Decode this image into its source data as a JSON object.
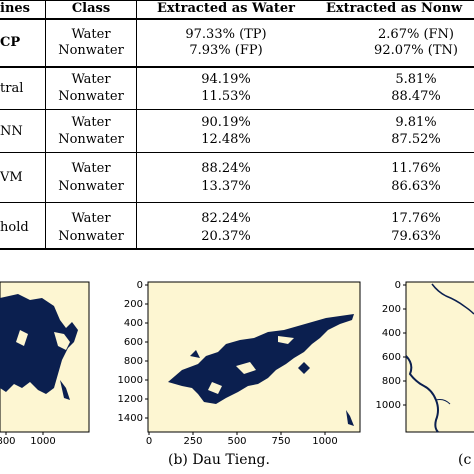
{
  "table": {
    "headers": [
      "ines",
      "Class",
      "Extracted as Water",
      "Extracted as Nonw"
    ],
    "rows": [
      {
        "method": "CP",
        "water_class": "Water",
        "nonwater_class": "Nonwater",
        "water_ew": "97.33% (TP)",
        "water_en": "2.67% (FN)",
        "nonwater_ew": "7.93% (FP)",
        "nonwater_en": "92.07% (TN)"
      },
      {
        "method": "tral",
        "water_class": "Water",
        "nonwater_class": "Nonwater",
        "water_ew": "94.19%",
        "water_en": "5.81%",
        "nonwater_ew": "11.53%",
        "nonwater_en": "88.47%"
      },
      {
        "method": "NN",
        "water_class": "Water",
        "nonwater_class": "Nonwater",
        "water_ew": "90.19%",
        "water_en": "9.81%",
        "nonwater_ew": "12.48%",
        "nonwater_en": "87.52%"
      },
      {
        "method": "VM",
        "water_class": "Water",
        "nonwater_class": "Nonwater",
        "water_ew": "88.24%",
        "water_en": "11.76%",
        "nonwater_ew": "13.37%",
        "nonwater_en": "86.63%"
      },
      {
        "method": "hold",
        "water_class": "Water",
        "nonwater_class": "Nonwater",
        "water_ew": "82.24%",
        "water_en": "17.76%",
        "nonwater_ew": "20.37%",
        "nonwater_en": "79.63%"
      }
    ]
  },
  "figures": {
    "left": {
      "x_ticks": [
        "800",
        "1000"
      ]
    },
    "middle": {
      "y_ticks": [
        "0",
        "200",
        "400",
        "600",
        "800",
        "1000",
        "1200",
        "1400"
      ],
      "x_ticks": [
        "0",
        "250",
        "500",
        "750",
        "1000"
      ],
      "caption": "(b) Dau Tieng."
    },
    "right": {
      "y_ticks": [
        "0",
        "200",
        "400",
        "600",
        "800",
        "1000"
      ],
      "caption": "(c"
    }
  },
  "colors": {
    "land": "#fdf6d2",
    "water": "#0b1f4f"
  }
}
